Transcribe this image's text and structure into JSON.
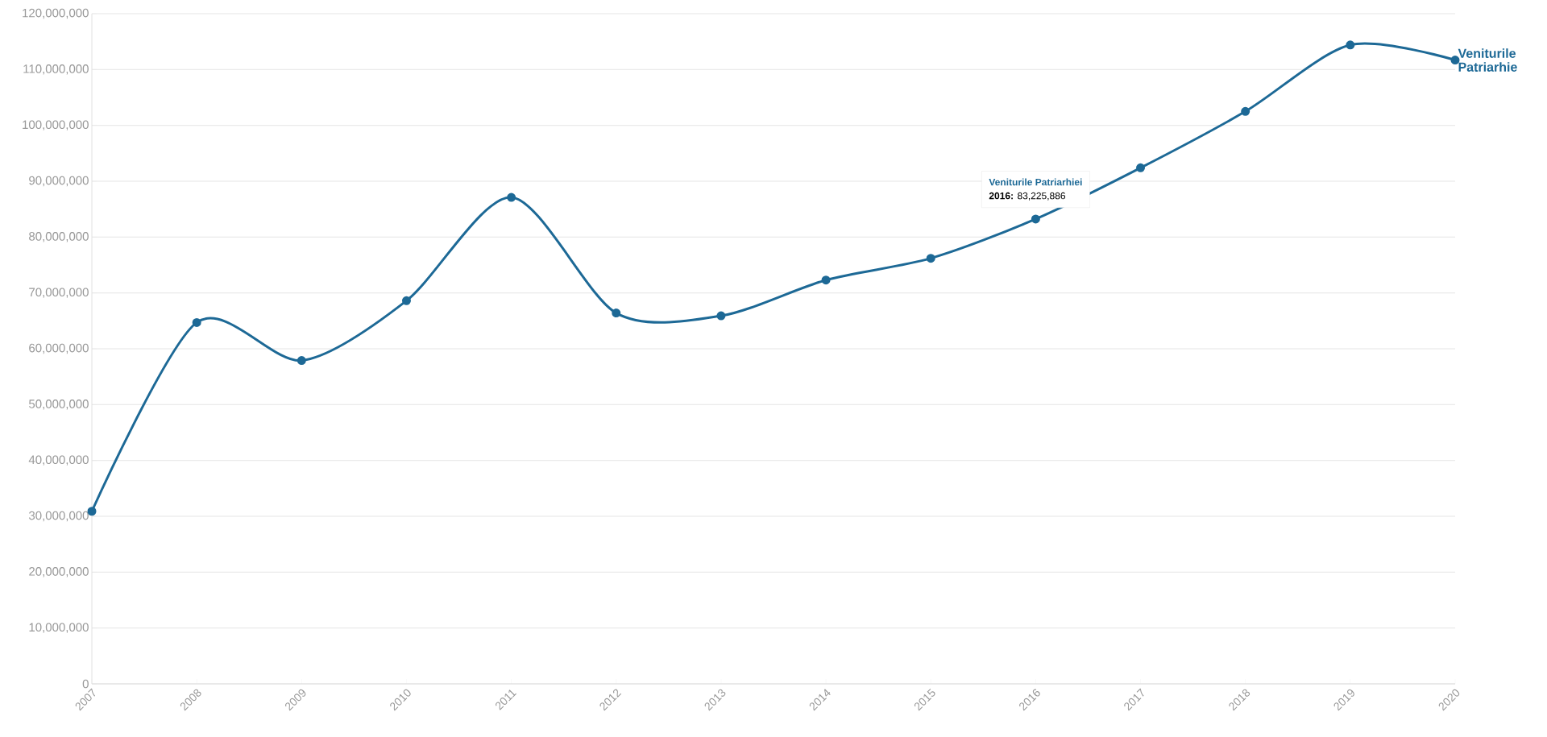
{
  "chart_data": {
    "type": "line",
    "x": [
      2007,
      2008,
      2009,
      2010,
      2011,
      2012,
      2013,
      2014,
      2015,
      2016,
      2017,
      2018,
      2019,
      2020
    ],
    "series": [
      {
        "name": "Veniturile Patriarhie",
        "color": "#1d6996",
        "values": [
          30900000,
          64700000,
          57900000,
          68600000,
          87100000,
          66400000,
          65900000,
          72300000,
          76200000,
          83225886,
          92400000,
          102500000,
          114400000,
          111700000
        ]
      }
    ],
    "xlim": [
      2007,
      2020
    ],
    "xticks": [
      2007,
      2008,
      2009,
      2010,
      2011,
      2012,
      2013,
      2014,
      2015,
      2016,
      2017,
      2018,
      2019,
      2020
    ],
    "ylim": [
      0,
      120000000
    ],
    "yticks": [
      {
        "value": 0,
        "label": "0"
      },
      {
        "value": 10000000,
        "label": "10,000,000"
      },
      {
        "value": 20000000,
        "label": "20,000,000"
      },
      {
        "value": 30000000,
        "label": "30,000,000"
      },
      {
        "value": 40000000,
        "label": "40,000,000"
      },
      {
        "value": 50000000,
        "label": "50,000,000"
      },
      {
        "value": 60000000,
        "label": "60,000,000"
      },
      {
        "value": 70000000,
        "label": "70,000,000"
      },
      {
        "value": 80000000,
        "label": "80,000,000"
      },
      {
        "value": 90000000,
        "label": "90,000,000"
      },
      {
        "value": 100000000,
        "label": "100,000,000"
      },
      {
        "value": 110000000,
        "label": "110,000,000"
      },
      {
        "value": 120000000,
        "label": "120,000,000"
      }
    ],
    "grid": "y",
    "marker": "circle",
    "line_style": "solid",
    "annotations": [
      "Veniturile Patriarhiei",
      {
        "text": "**2016:** 83,225,886",
        "x": 2016,
        "y": 83225886
      }
    ]
  }
}
